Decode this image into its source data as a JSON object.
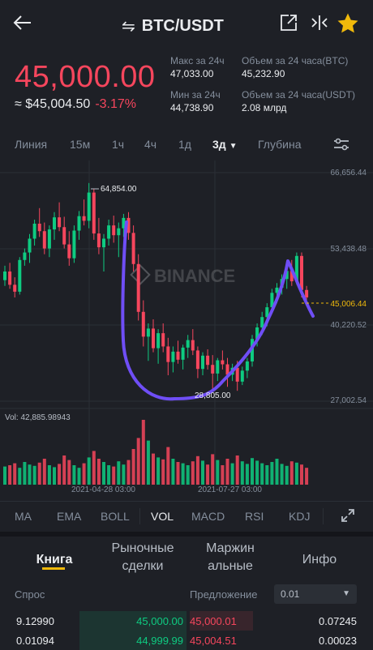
{
  "header": {
    "pair": "BTC/USDT",
    "swap_glyph": "⇋",
    "icons": {
      "back": "back-arrow-icon",
      "share": "share-icon",
      "split": "split-icon",
      "star": "star-icon"
    }
  },
  "ticker": {
    "price": "45,000.00",
    "approx_label": "≈ $45,004.50",
    "change": "-3.17%",
    "stats": [
      {
        "label": "Макс за 24ч",
        "value": "47,033.00"
      },
      {
        "label": "Объем за 24 часа(BTC)",
        "value": "45,232.90"
      },
      {
        "label": "Мин за 24ч",
        "value": "44,738.90"
      },
      {
        "label": "Объем за 24 часа(USDT)",
        "value": "2.08 млрд"
      }
    ]
  },
  "timeframes": {
    "items": [
      "Линия",
      "15м",
      "1ч",
      "4ч",
      "1д",
      "3д",
      "Глубина"
    ],
    "active": "3д",
    "settings_icon": "sliders-icon"
  },
  "chart": {
    "watermark": "BINANCE",
    "price_axis": [
      "66,656.44",
      "53,438.48",
      "40,220.52",
      "27,002.54"
    ],
    "high_label": "64,854.00",
    "low_label": "28,805.00",
    "last_price": "45,006.44",
    "volume_label": "Vol: 42,885.98943",
    "date_labels": [
      "2021-04-28 03:00",
      "2021-07-27 03:00"
    ],
    "colors": {
      "up": "#0ecb81",
      "down": "#f6465d",
      "drawing": "#6f4ef6",
      "last": "#f0b90b"
    }
  },
  "chart_data": {
    "type": "candlestick",
    "title": "",
    "ylim": [
      27002.54,
      66656.44
    ],
    "candles": [
      [
        48000,
        50500,
        47000,
        49500
      ],
      [
        49500,
        51000,
        46500,
        47200
      ],
      [
        47200,
        48500,
        45000,
        46000
      ],
      [
        46000,
        52000,
        45500,
        51500
      ],
      [
        51500,
        53500,
        50500,
        52800
      ],
      [
        52800,
        56000,
        51000,
        55200
      ],
      [
        55200,
        58500,
        54000,
        57800
      ],
      [
        57800,
        60500,
        55500,
        56500
      ],
      [
        56500,
        58000,
        52500,
        53500
      ],
      [
        53500,
        57500,
        52000,
        56800
      ],
      [
        56800,
        59800,
        55000,
        58900
      ],
      [
        58900,
        61500,
        56500,
        57200
      ],
      [
        57200,
        59000,
        53500,
        54200
      ],
      [
        54200,
        56500,
        50500,
        51800
      ],
      [
        51800,
        57500,
        51000,
        56600
      ],
      [
        56600,
        60000,
        55000,
        59100
      ],
      [
        59100,
        62000,
        57500,
        58300
      ],
      [
        58300,
        64854,
        57000,
        63200
      ],
      [
        63200,
        63800,
        55000,
        56100
      ],
      [
        56100,
        58800,
        52500,
        53700
      ],
      [
        53700,
        56000,
        49500,
        55200
      ],
      [
        55200,
        58500,
        54000,
        57500
      ],
      [
        57500,
        59200,
        54500,
        55800
      ],
      [
        55800,
        58000,
        52000,
        57000
      ],
      [
        57000,
        59500,
        55500,
        58800
      ],
      [
        58800,
        59800,
        55000,
        56200
      ],
      [
        56200,
        57500,
        49500,
        50800
      ],
      [
        50800,
        52500,
        41000,
        42500
      ],
      [
        42500,
        44500,
        36500,
        38200
      ],
      [
        38200,
        40500,
        34000,
        39600
      ],
      [
        39600,
        41200,
        35500,
        36200
      ],
      [
        36200,
        39500,
        33500,
        38800
      ],
      [
        38800,
        40500,
        35500,
        36500
      ],
      [
        36500,
        38000,
        31500,
        33800
      ],
      [
        33800,
        36500,
        32000,
        35600
      ],
      [
        35600,
        37500,
        33500,
        34200
      ],
      [
        34200,
        36800,
        32500,
        36300
      ],
      [
        36300,
        38500,
        34500,
        37600
      ],
      [
        37600,
        39500,
        35000,
        35800
      ],
      [
        35800,
        36500,
        31000,
        32600
      ],
      [
        32600,
        35500,
        31500,
        34900
      ],
      [
        34900,
        36000,
        32500,
        33300
      ],
      [
        33300,
        35000,
        29000,
        31800
      ],
      [
        31800,
        34500,
        30500,
        34100
      ],
      [
        34100,
        35800,
        32500,
        33400
      ],
      [
        33400,
        34500,
        29500,
        31600
      ],
      [
        31600,
        33500,
        30500,
        32800
      ],
      [
        32800,
        34000,
        28805,
        30400
      ],
      [
        30400,
        33000,
        29800,
        32300
      ],
      [
        32300,
        34500,
        31000,
        33900
      ],
      [
        33900,
        38500,
        33000,
        37800
      ],
      [
        37800,
        40500,
        36500,
        39800
      ],
      [
        39800,
        42500,
        38500,
        41600
      ],
      [
        41600,
        44000,
        40000,
        43300
      ],
      [
        43300,
        46500,
        42500,
        45800
      ],
      [
        45800,
        47500,
        44000,
        46700
      ],
      [
        46700,
        49000,
        45500,
        48200
      ],
      [
        48200,
        50500,
        46500,
        49600
      ],
      [
        49600,
        51500,
        47000,
        47800
      ],
      [
        47800,
        52800,
        47200,
        52200
      ],
      [
        52200,
        52800,
        45000,
        46300
      ],
      [
        46300,
        47000,
        44600,
        45006
      ]
    ],
    "volumes": [
      0.28,
      0.3,
      0.33,
      0.26,
      0.35,
      0.31,
      0.29,
      0.34,
      0.4,
      0.3,
      0.27,
      0.32,
      0.45,
      0.38,
      0.3,
      0.26,
      0.33,
      0.42,
      0.52,
      0.4,
      0.35,
      0.3,
      0.28,
      0.36,
      0.31,
      0.38,
      0.55,
      0.72,
      1.0,
      0.68,
      0.48,
      0.42,
      0.39,
      0.58,
      0.4,
      0.35,
      0.33,
      0.3,
      0.36,
      0.44,
      0.37,
      0.31,
      0.47,
      0.38,
      0.3,
      0.4,
      0.33,
      0.45,
      0.36,
      0.32,
      0.41,
      0.37,
      0.33,
      0.3,
      0.35,
      0.4,
      0.32,
      0.29,
      0.36,
      0.34,
      0.31,
      0.26
    ]
  },
  "indicators": {
    "items": [
      "MA",
      "EMA",
      "BOLL",
      "VOL",
      "MACD",
      "RSI",
      "KDJ"
    ],
    "active": "VOL",
    "expand_icon": "expand-icon"
  },
  "tabs": {
    "items": [
      "Книга",
      "Рыночные сделки",
      "Маржин альные",
      "Инфо"
    ],
    "active": "Книга"
  },
  "orderbook": {
    "bid_label": "Спрос",
    "ask_label": "Предложение",
    "precision": "0.01",
    "rows": [
      {
        "bid_qty": "9.12990",
        "bid_price": "45,000.00",
        "ask_price": "45,000.01",
        "ask_qty": "0.07245"
      },
      {
        "bid_qty": "0.01094",
        "bid_price": "44,999.99",
        "ask_price": "45,004.51",
        "ask_qty": "0.00023"
      }
    ]
  }
}
